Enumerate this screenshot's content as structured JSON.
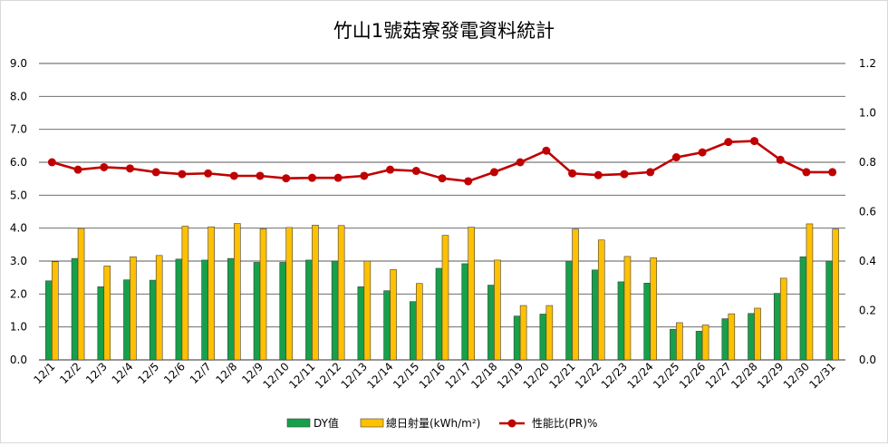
{
  "chart_data": {
    "type": "bar",
    "title": "竹山1號菇寮發電資料統計",
    "categories": [
      "12/1",
      "12/2",
      "12/3",
      "12/4",
      "12/5",
      "12/6",
      "12/7",
      "12/8",
      "12/9",
      "12/10",
      "12/11",
      "12/12",
      "12/13",
      "12/14",
      "12/15",
      "12/16",
      "12/17",
      "12/18",
      "12/19",
      "12/20",
      "12/21",
      "12/22",
      "12/23",
      "12/24",
      "12/25",
      "12/26",
      "12/27",
      "12/28",
      "12/29",
      "12/30",
      "12/31"
    ],
    "series": [
      {
        "name": "DY值",
        "type": "bar",
        "axis": "left",
        "color": "#16a04a",
        "values": [
          2.4,
          3.08,
          2.22,
          2.43,
          2.42,
          3.06,
          3.03,
          3.08,
          2.96,
          2.96,
          3.03,
          3.0,
          2.22,
          2.1,
          1.77,
          2.78,
          2.92,
          2.27,
          1.33,
          1.39,
          3.0,
          2.73,
          2.37,
          2.33,
          0.93,
          0.87,
          1.25,
          1.41,
          2.02,
          3.13,
          3.0
        ]
      },
      {
        "name": "總日射量(kWh/m²)",
        "type": "bar",
        "axis": "left",
        "color": "#ffc000",
        "values": [
          2.98,
          3.99,
          2.85,
          3.13,
          3.17,
          4.06,
          4.04,
          4.14,
          3.98,
          4.02,
          4.09,
          4.08,
          3.0,
          2.74,
          2.32,
          3.78,
          4.03,
          3.03,
          1.65,
          1.65,
          3.97,
          3.64,
          3.14,
          3.1,
          1.13,
          1.06,
          1.4,
          1.57,
          2.48,
          4.13,
          3.97
        ]
      },
      {
        "name": "性能比(PR)%",
        "type": "line",
        "axis": "right",
        "color": "#c00000",
        "values": [
          0.8,
          0.77,
          0.78,
          0.775,
          0.76,
          0.752,
          0.755,
          0.745,
          0.745,
          0.735,
          0.737,
          0.737,
          0.745,
          0.77,
          0.765,
          0.735,
          0.723,
          0.76,
          0.8,
          0.847,
          0.755,
          0.748,
          0.752,
          0.76,
          0.82,
          0.84,
          0.882,
          0.886,
          0.81,
          0.76,
          0.76
        ]
      }
    ],
    "y_left": {
      "min": 0,
      "max": 9,
      "ticks": [
        "0.0",
        "1.0",
        "2.0",
        "3.0",
        "4.0",
        "5.0",
        "6.0",
        "7.0",
        "8.0",
        "9.0"
      ]
    },
    "y_right": {
      "min": 0,
      "max": 1.2,
      "ticks": [
        "0.0",
        "0.2",
        "0.4",
        "0.6",
        "0.8",
        "1.0",
        "1.2"
      ]
    },
    "grid": true,
    "legend_position": "bottom"
  }
}
